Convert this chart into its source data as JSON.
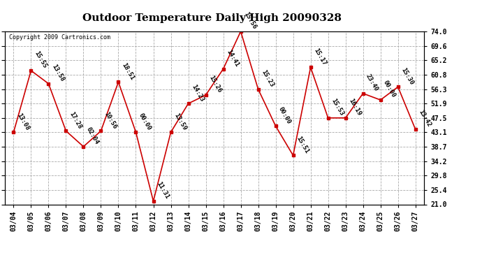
{
  "title": "Outdoor Temperature Daily High 20090328",
  "copyright": "Copyright 2009 Cartronics.com",
  "dates": [
    "03/04",
    "03/05",
    "03/06",
    "03/07",
    "03/08",
    "03/09",
    "03/10",
    "03/11",
    "03/12",
    "03/13",
    "03/14",
    "03/15",
    "03/16",
    "03/17",
    "03/18",
    "03/19",
    "03/20",
    "03/21",
    "03/22",
    "03/23",
    "03/24",
    "03/25",
    "03/26",
    "03/27"
  ],
  "values": [
    43.1,
    62.0,
    58.0,
    43.5,
    38.7,
    43.5,
    58.5,
    43.1,
    22.0,
    43.1,
    51.9,
    54.5,
    62.5,
    74.0,
    56.3,
    45.0,
    36.0,
    63.0,
    47.5,
    47.5,
    55.0,
    53.0,
    57.0,
    44.0
  ],
  "labels": [
    "13:08",
    "15:55",
    "13:58",
    "17:28",
    "02:04",
    "10:56",
    "18:51",
    "00:00",
    "11:31",
    "13:59",
    "14:23",
    "15:26",
    "14:41",
    "15:56",
    "15:23",
    "00:00",
    "15:51",
    "15:17",
    "15:53",
    "16:19",
    "23:40",
    "00:00",
    "15:30",
    "13:42"
  ],
  "ylim": [
    21.0,
    74.0
  ],
  "yticks": [
    21.0,
    25.4,
    29.8,
    34.2,
    38.7,
    43.1,
    47.5,
    51.9,
    56.3,
    60.8,
    65.2,
    69.6,
    74.0
  ],
  "line_color": "#cc0000",
  "marker_color": "#cc0000",
  "background_color": "#ffffff",
  "grid_color": "#aaaaaa",
  "title_fontsize": 11,
  "label_fontsize": 6.5,
  "tick_fontsize": 7,
  "copyright_fontsize": 6
}
